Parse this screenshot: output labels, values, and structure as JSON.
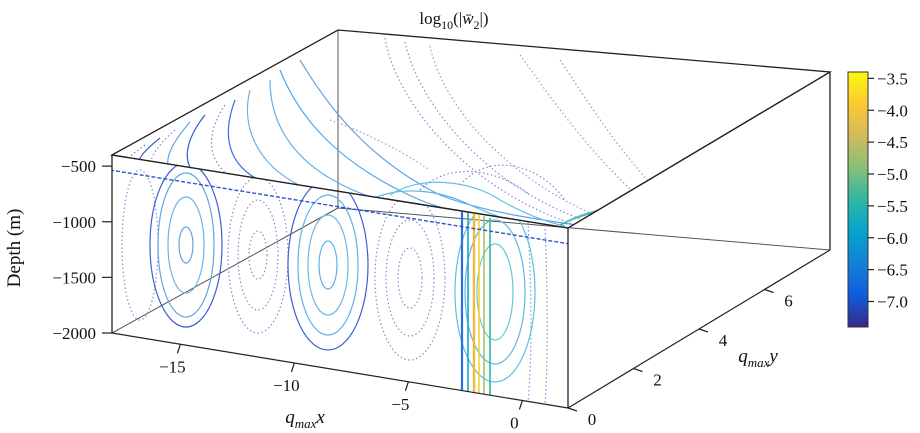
{
  "chart_data": {
    "type": "contour3d",
    "title": "log10(|w̄2|)",
    "title_parts": {
      "base": "log",
      "sub": "10",
      "open": "(|",
      "var": "w̄",
      "var_sub": "2",
      "close": "|)"
    },
    "zlabel": "Depth (m)",
    "xlabel": {
      "base": "q",
      "sub": "max",
      "var": "x"
    },
    "ylabel": {
      "base": "q",
      "sub": "max",
      "var": "y"
    },
    "x_ticks": [
      -15,
      -10,
      -5,
      0
    ],
    "y_ticks": [
      0,
      2,
      4,
      6
    ],
    "z_ticks": [
      -500,
      -1000,
      -1500,
      -2000
    ],
    "xlim": [
      -18,
      2
    ],
    "ylim": [
      0,
      8
    ],
    "zlim": [
      -2000,
      -400
    ],
    "colorbar": {
      "ticks": [
        -3.5,
        -4.0,
        -4.5,
        -5.0,
        -5.5,
        -6.0,
        -6.5,
        -7.0
      ],
      "range": [
        -7.4,
        -3.4
      ],
      "colors": [
        "#352a87",
        "#0f5cdd",
        "#1481d6",
        "#06a4ca",
        "#2eb7a4",
        "#87bf77",
        "#d1bb59",
        "#fec832",
        "#f9fb0e"
      ]
    }
  }
}
